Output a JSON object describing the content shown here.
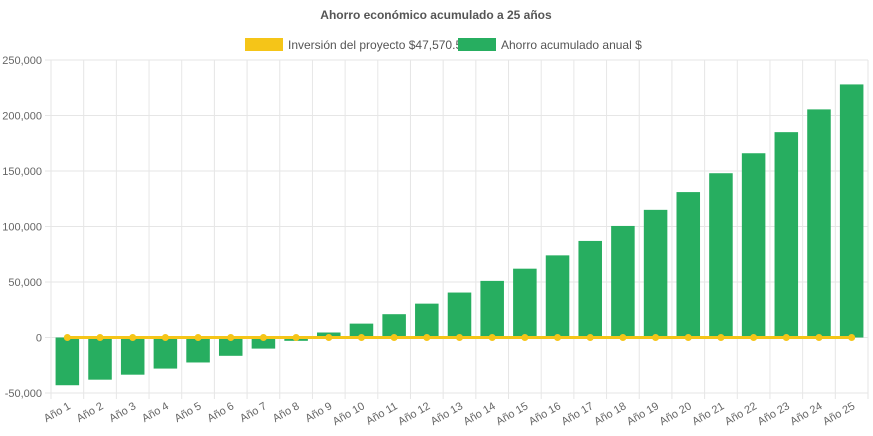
{
  "chart_data": {
    "type": "bar",
    "title": "Ahorro económico acumulado a 25 años",
    "categories": [
      "Año 1",
      "Año 2",
      "Año 3",
      "Año 4",
      "Año 5",
      "Año 6",
      "Año 7",
      "Año 8",
      "Año 9",
      "Año 10",
      "Año 11",
      "Año 12",
      "Año 13",
      "Año 14",
      "Año 15",
      "Año 16",
      "Año 17",
      "Año 18",
      "Año 19",
      "Año 20",
      "Año 21",
      "Año 22",
      "Año 23",
      "Año 24",
      "Año 25"
    ],
    "series": [
      {
        "name": "Inversión del proyecto $47,570.51",
        "type": "line",
        "color": "#f5c518",
        "values": [
          0,
          0,
          0,
          0,
          0,
          0,
          0,
          0,
          0,
          0,
          0,
          0,
          0,
          0,
          0,
          0,
          0,
          0,
          0,
          0,
          0,
          0,
          0,
          0,
          0
        ]
      },
      {
        "name": "Ahorro acumulado anual $",
        "type": "bar",
        "color": "#27ae60",
        "values": [
          -43000,
          -38000,
          -33500,
          -28000,
          -22500,
          -16500,
          -10000,
          -3000,
          4500,
          12500,
          21000,
          30500,
          40500,
          51000,
          62000,
          74000,
          87000,
          100500,
          115000,
          131000,
          148000,
          166000,
          185000,
          205500,
          228000
        ]
      }
    ],
    "yticks": [
      "250,000",
      "200,000",
      "150,000",
      "100,000",
      "50,000",
      "0",
      "-50,000"
    ],
    "ylim": [
      -50000,
      250000
    ],
    "grid": true,
    "legend_position": "top-center"
  }
}
